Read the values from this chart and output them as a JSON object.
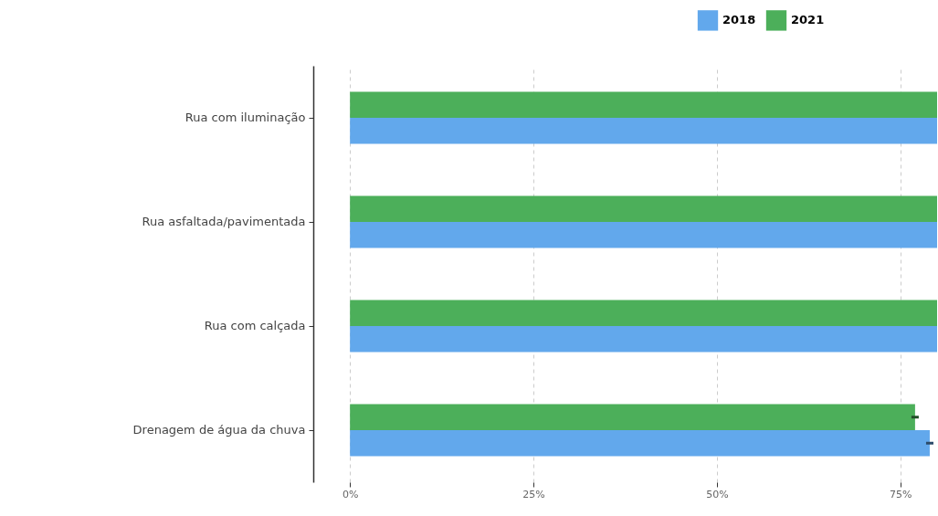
{
  "chart_data": {
    "type": "bar",
    "orientation": "horizontal",
    "categories": [
      "Rua com iluminação",
      "Rua asfaltada/pavimentada",
      "Rua com calçada",
      "Drenagem de água da chuva"
    ],
    "series": [
      {
        "name": "2018",
        "color": "#62a8ec",
        "values": [
          80,
          80,
          80,
          79
        ],
        "errors": [
          null,
          null,
          null,
          0.5
        ]
      },
      {
        "name": "2021",
        "color": "#4caf5a",
        "values": [
          80,
          80,
          80,
          77
        ],
        "errors": [
          null,
          null,
          null,
          0.5
        ]
      }
    ],
    "xlim": [
      -5,
      80
    ],
    "xticks": [
      {
        "value": 0,
        "label": "0%"
      },
      {
        "value": 25,
        "label": "25%"
      },
      {
        "value": 50,
        "label": "50%"
      },
      {
        "value": 75,
        "label": "75%"
      }
    ],
    "grid": "x",
    "legend": "top right"
  }
}
